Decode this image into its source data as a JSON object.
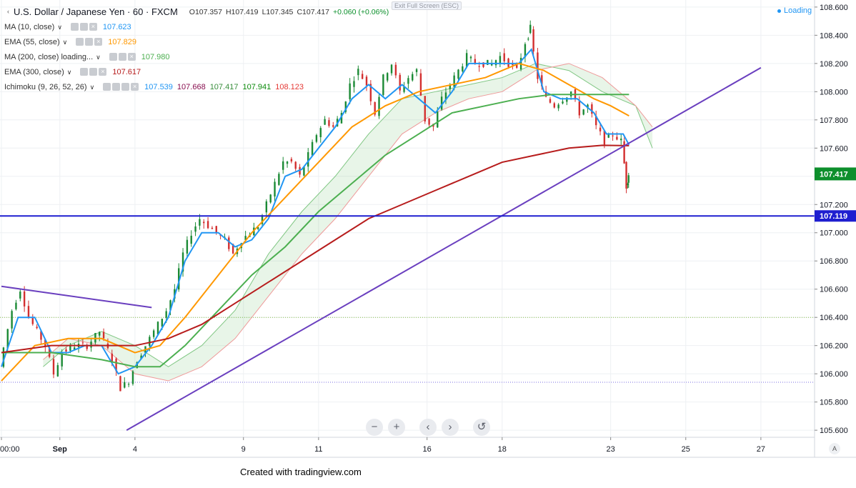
{
  "header": {
    "symbol_title": "U.S. Dollar / Japanese Yen · 60 · FXCM",
    "ohlc": {
      "open": "O107.357",
      "high": "H107.419",
      "low": "L107.345",
      "close": "C107.417",
      "change": "+0.060 (+0.06%)"
    },
    "exit_fullscreen": "Exit Full Screen (ESC)",
    "loading_label": "Loading"
  },
  "indicators": [
    {
      "name": "MA (10, close)",
      "values": [
        "107.623"
      ],
      "colors": [
        "#2196f3"
      ]
    },
    {
      "name": "EMA (55, close)",
      "values": [
        "107.829"
      ],
      "colors": [
        "#ff9800"
      ]
    },
    {
      "name": "MA (200, close) loading...",
      "values": [
        "107.980"
      ],
      "colors": [
        "#4caf50"
      ]
    },
    {
      "name": "EMA (300, close)",
      "values": [
        "107.617"
      ],
      "colors": [
        "#b71c1c"
      ]
    },
    {
      "name": "Ichimoku (9, 26, 52, 26)",
      "values": [
        "107.539",
        "107.668",
        "107.417",
        "107.941",
        "108.123"
      ],
      "colors": [
        "#2196f3",
        "#880e4f",
        "#388e3c",
        "#0b8a0b",
        "#e53935"
      ]
    }
  ],
  "footer_text": "Created with tradingview.com",
  "nav_controls": [
    "−",
    "+",
    "‹",
    "›",
    "↺"
  ],
  "auto_label": "A",
  "chart_data": {
    "type": "candlestick",
    "symbol": "USD/JPY",
    "interval": "60",
    "y_range": [
      105.55,
      108.65
    ],
    "y_ticks": [
      105.6,
      105.8,
      106.0,
      106.2,
      106.4,
      106.6,
      106.8,
      107.0,
      107.2,
      107.4,
      107.6,
      107.8,
      108.0,
      108.2,
      108.4,
      108.6
    ],
    "y_tick_labels": [
      "105.600",
      "105.800",
      "106.000",
      "106.200",
      "106.400",
      "106.600",
      "106.800",
      "107.000",
      "107.200",
      "107.400",
      "107.600",
      "107.800",
      "108.000",
      "108.200",
      "108.400",
      "108.600"
    ],
    "x_range": [
      0,
      100
    ],
    "x_ticks": [
      {
        "t": 0,
        "label": "00:00"
      },
      {
        "t": 7,
        "label": "Sep"
      },
      {
        "t": 16,
        "label": "4"
      },
      {
        "t": 29,
        "label": "9"
      },
      {
        "t": 38,
        "label": "11"
      },
      {
        "t": 51,
        "label": "16"
      },
      {
        "t": 60,
        "label": "18"
      },
      {
        "t": 73,
        "label": "23"
      },
      {
        "t": 82,
        "label": "25"
      },
      {
        "t": 91,
        "label": "27"
      }
    ],
    "price_series": [
      [
        0,
        106.05
      ],
      [
        1.5,
        106.45
      ],
      [
        2.5,
        106.6
      ],
      [
        3.5,
        106.4
      ],
      [
        4.5,
        106.3
      ],
      [
        5.5,
        106.2
      ],
      [
        6.5,
        106.0
      ],
      [
        7.5,
        106.15
      ],
      [
        9,
        106.2
      ],
      [
        10.5,
        106.2
      ],
      [
        12,
        106.3
      ],
      [
        13.5,
        106.1
      ],
      [
        14.5,
        105.9
      ],
      [
        15.5,
        105.95
      ],
      [
        16.5,
        106.1
      ],
      [
        18,
        106.25
      ],
      [
        20,
        106.45
      ],
      [
        21,
        106.6
      ],
      [
        22,
        106.85
      ],
      [
        23,
        107.0
      ],
      [
        24,
        107.1
      ],
      [
        25,
        107.05
      ],
      [
        26,
        107.0
      ],
      [
        27,
        106.95
      ],
      [
        28,
        106.85
      ],
      [
        29,
        106.95
      ],
      [
        30,
        107.0
      ],
      [
        31,
        107.05
      ],
      [
        32,
        107.2
      ],
      [
        33,
        107.35
      ],
      [
        34,
        107.5
      ],
      [
        35,
        107.5
      ],
      [
        36,
        107.4
      ],
      [
        37,
        107.55
      ],
      [
        38,
        107.7
      ],
      [
        39,
        107.8
      ],
      [
        40,
        107.75
      ],
      [
        41,
        107.85
      ],
      [
        42,
        108.05
      ],
      [
        43,
        108.15
      ],
      [
        44,
        108.05
      ],
      [
        45,
        107.85
      ],
      [
        46,
        108.1
      ],
      [
        47,
        108.2
      ],
      [
        48,
        108.0
      ],
      [
        49,
        108.1
      ],
      [
        50,
        108.15
      ],
      [
        51,
        107.8
      ],
      [
        52,
        107.75
      ],
      [
        53,
        107.95
      ],
      [
        54,
        108.05
      ],
      [
        55,
        108.15
      ],
      [
        56,
        108.25
      ],
      [
        57,
        108.2
      ],
      [
        58,
        108.2
      ],
      [
        59,
        108.2
      ],
      [
        60,
        108.25
      ],
      [
        61,
        108.2
      ],
      [
        62,
        108.15
      ],
      [
        63,
        108.35
      ],
      [
        63.5,
        108.45
      ],
      [
        64.5,
        108.1
      ],
      [
        65.5,
        107.95
      ],
      [
        66.5,
        107.9
      ],
      [
        67.5,
        107.95
      ],
      [
        68.5,
        108.0
      ],
      [
        69.5,
        107.85
      ],
      [
        70.5,
        107.9
      ],
      [
        71.5,
        107.75
      ],
      [
        72.5,
        107.65
      ],
      [
        73.5,
        107.7
      ],
      [
        74.5,
        107.65
      ],
      [
        75,
        107.33
      ],
      [
        75.2,
        107.417
      ]
    ],
    "series": [
      {
        "name": "MA (10, close)",
        "color": "#2196f3",
        "values": [
          [
            0,
            106.05
          ],
          [
            2,
            106.4
          ],
          [
            4,
            106.4
          ],
          [
            6,
            106.15
          ],
          [
            8,
            106.15
          ],
          [
            10,
            106.2
          ],
          [
            12,
            106.2
          ],
          [
            14,
            106.0
          ],
          [
            16,
            106.05
          ],
          [
            18,
            106.2
          ],
          [
            20,
            106.4
          ],
          [
            22,
            106.8
          ],
          [
            24,
            107.0
          ],
          [
            26,
            107.0
          ],
          [
            28,
            106.9
          ],
          [
            30,
            106.95
          ],
          [
            32,
            107.1
          ],
          [
            34,
            107.4
          ],
          [
            36,
            107.45
          ],
          [
            38,
            107.6
          ],
          [
            40,
            107.75
          ],
          [
            42,
            107.95
          ],
          [
            44,
            108.05
          ],
          [
            46,
            107.95
          ],
          [
            48,
            108.05
          ],
          [
            50,
            107.95
          ],
          [
            52,
            107.85
          ],
          [
            54,
            108.0
          ],
          [
            56,
            108.2
          ],
          [
            58,
            108.2
          ],
          [
            60,
            108.2
          ],
          [
            62,
            108.2
          ],
          [
            63.5,
            108.3
          ],
          [
            65,
            108.0
          ],
          [
            67,
            107.95
          ],
          [
            69,
            107.95
          ],
          [
            71,
            107.85
          ],
          [
            72.5,
            107.7
          ],
          [
            74.5,
            107.7
          ],
          [
            75.2,
            107.623
          ]
        ]
      },
      {
        "name": "EMA (55, close)",
        "color": "#ff9800",
        "values": [
          [
            0,
            105.95
          ],
          [
            4,
            106.2
          ],
          [
            8,
            106.25
          ],
          [
            12,
            106.25
          ],
          [
            16,
            106.15
          ],
          [
            19,
            106.2
          ],
          [
            22,
            106.4
          ],
          [
            26,
            106.7
          ],
          [
            30,
            107.0
          ],
          [
            34,
            107.25
          ],
          [
            38,
            107.5
          ],
          [
            42,
            107.75
          ],
          [
            46,
            107.9
          ],
          [
            50,
            108.0
          ],
          [
            54,
            108.05
          ],
          [
            58,
            108.1
          ],
          [
            62,
            108.2
          ],
          [
            65,
            108.15
          ],
          [
            68,
            108.05
          ],
          [
            71,
            107.95
          ],
          [
            73,
            107.9
          ],
          [
            75.2,
            107.829
          ]
        ]
      },
      {
        "name": "MA (200, close)",
        "color": "#4caf50",
        "values": [
          [
            0,
            106.15
          ],
          [
            6,
            106.15
          ],
          [
            12,
            106.1
          ],
          [
            16,
            106.05
          ],
          [
            19,
            106.05
          ],
          [
            22,
            106.2
          ],
          [
            26,
            106.45
          ],
          [
            30,
            106.7
          ],
          [
            34,
            106.9
          ],
          [
            38,
            107.15
          ],
          [
            42,
            107.35
          ],
          [
            46,
            107.55
          ],
          [
            50,
            107.7
          ],
          [
            54,
            107.85
          ],
          [
            58,
            107.9
          ],
          [
            62,
            107.95
          ],
          [
            66,
            107.98
          ],
          [
            70,
            107.98
          ],
          [
            75.2,
            107.98
          ]
        ]
      },
      {
        "name": "EMA (300, close)",
        "color": "#b71c1c",
        "values": [
          [
            0,
            106.15
          ],
          [
            6,
            106.2
          ],
          [
            12,
            106.2
          ],
          [
            16,
            106.2
          ],
          [
            20,
            106.25
          ],
          [
            24,
            106.35
          ],
          [
            28,
            106.5
          ],
          [
            32,
            106.65
          ],
          [
            36,
            106.8
          ],
          [
            40,
            106.95
          ],
          [
            44,
            107.1
          ],
          [
            48,
            107.2
          ],
          [
            52,
            107.3
          ],
          [
            56,
            107.4
          ],
          [
            60,
            107.5
          ],
          [
            64,
            107.55
          ],
          [
            68,
            107.6
          ],
          [
            72,
            107.62
          ],
          [
            75.2,
            107.617
          ]
        ]
      }
    ],
    "ichimoku_cloud": {
      "span_a": [
        [
          5,
          106.05
        ],
        [
          8,
          106.2
        ],
        [
          12,
          106.3
        ],
        [
          16,
          106.2
        ],
        [
          20,
          106.05
        ],
        [
          24,
          106.2
        ],
        [
          28,
          106.45
        ],
        [
          32,
          106.85
        ],
        [
          36,
          107.15
        ],
        [
          40,
          107.4
        ],
        [
          44,
          107.7
        ],
        [
          48,
          107.95
        ],
        [
          52,
          108.0
        ],
        [
          56,
          108.05
        ],
        [
          60,
          108.1
        ],
        [
          64,
          108.2
        ],
        [
          68,
          108.15
        ],
        [
          72,
          108.0
        ],
        [
          76,
          107.9
        ],
        [
          78,
          107.6
        ]
      ],
      "span_b": [
        [
          5,
          106.1
        ],
        [
          8,
          106.25
        ],
        [
          12,
          106.2
        ],
        [
          16,
          106.0
        ],
        [
          20,
          105.95
        ],
        [
          24,
          106.05
        ],
        [
          28,
          106.25
        ],
        [
          32,
          106.55
        ],
        [
          36,
          106.85
        ],
        [
          40,
          107.1
        ],
        [
          44,
          107.4
        ],
        [
          48,
          107.7
        ],
        [
          52,
          107.85
        ],
        [
          56,
          107.95
        ],
        [
          60,
          108.0
        ],
        [
          64,
          108.15
        ],
        [
          68,
          108.2
        ],
        [
          72,
          108.1
        ],
        [
          76,
          107.9
        ],
        [
          78,
          107.75
        ]
      ]
    },
    "trendlines": [
      {
        "color": "#6a3fbf",
        "points": [
          [
            0,
            106.62
          ],
          [
            18,
            106.47
          ]
        ]
      },
      {
        "color": "#6a3fbf",
        "points": [
          [
            15,
            105.6
          ],
          [
            91,
            108.17
          ]
        ]
      }
    ],
    "horizontal_level": {
      "value": 107.119,
      "label": "107.119",
      "color": "#1f1fd0"
    },
    "dotted_levels": [
      {
        "value": 106.4,
        "color": "#8bc34a"
      },
      {
        "value": 105.94,
        "color": "#7a6ee0"
      }
    ],
    "current_price": {
      "value": 107.417,
      "label": "107.417",
      "color": "#0d8f2c"
    }
  }
}
